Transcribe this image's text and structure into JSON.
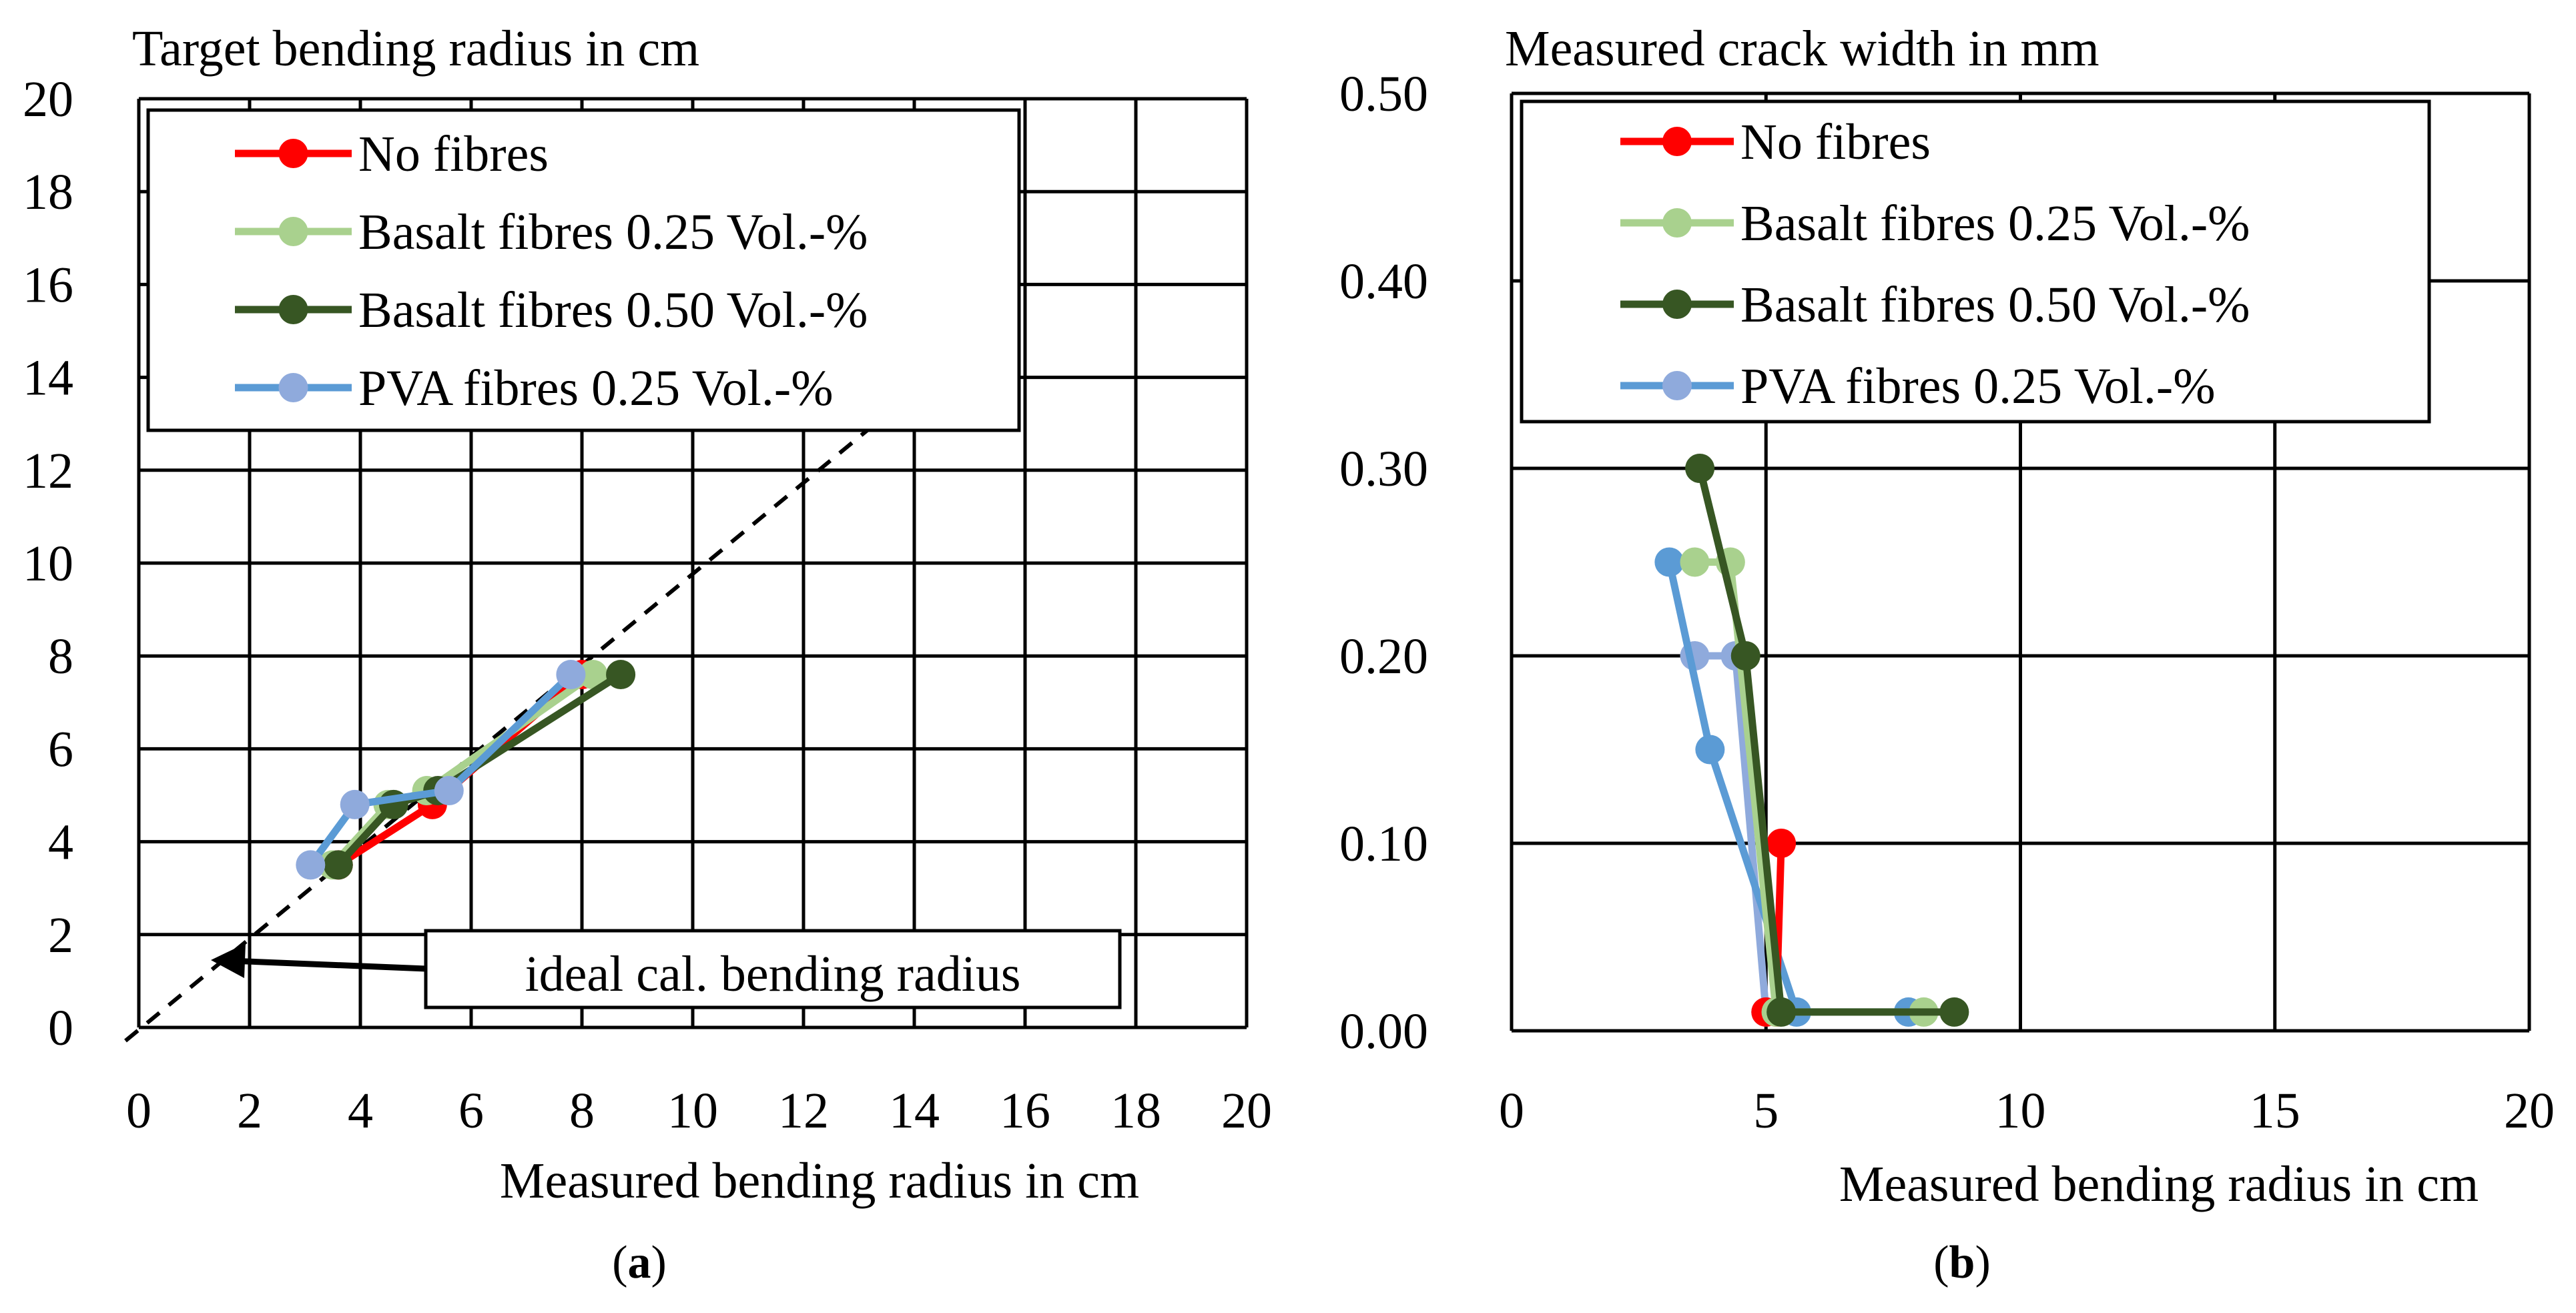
{
  "colors": {
    "no_fibres": "#ff0000",
    "basalt_025": "#a9d18e",
    "basalt_050": "#375623",
    "pva_line": "#5b9bd5",
    "pva_marker": "#8faadc"
  },
  "chart_data": [
    {
      "panel_label": "a",
      "type": "scatter",
      "title": "Target bending radius in cm",
      "xlabel": "Measured bending radius in cm",
      "ylabel": "",
      "xlim": [
        0,
        20
      ],
      "ylim": [
        0,
        20
      ],
      "x_ticks": [
        "0",
        "2",
        "4",
        "6",
        "8",
        "10",
        "12",
        "14",
        "16",
        "18",
        "20"
      ],
      "y_ticks": [
        "0",
        "2",
        "4",
        "6",
        "8",
        "10",
        "12",
        "14",
        "16",
        "18",
        "20"
      ],
      "grid": true,
      "legend_position": "top-left",
      "annotation": "ideal cal. bending radius",
      "reference_line": {
        "points": [
          [
            0,
            0
          ],
          [
            13.6,
            13.3
          ]
        ]
      },
      "series": [
        {
          "name": "No fibres",
          "color_key": "no_fibres",
          "x": [
            3.6,
            5.3,
            8.0
          ],
          "y": [
            3.5,
            4.8,
            7.6
          ]
        },
        {
          "name": "Basalt fibres 0.25 Vol.-%",
          "color_key": "basalt_025",
          "x": [
            3.5,
            4.5,
            5.2,
            8.2
          ],
          "y": [
            3.5,
            4.8,
            5.1,
            7.6
          ]
        },
        {
          "name": "Basalt fibres 0.50 Vol.-%",
          "color_key": "basalt_050",
          "x": [
            3.6,
            4.6,
            5.4,
            8.7
          ],
          "y": [
            3.5,
            4.8,
            5.1,
            7.6
          ]
        },
        {
          "name": "PVA fibres 0.25 Vol.-%",
          "color_key": "pva_line",
          "marker_key": "pva_marker",
          "x": [
            3.1,
            3.9,
            5.6,
            7.8
          ],
          "y": [
            3.5,
            4.8,
            5.1,
            7.6
          ]
        }
      ]
    },
    {
      "panel_label": "b",
      "type": "scatter",
      "title": "Measured crack width in mm",
      "xlabel": "Measured bending radius in cm",
      "ylabel": "",
      "xlim": [
        0,
        20
      ],
      "ylim": [
        0,
        0.5
      ],
      "x_ticks": [
        "0",
        "5",
        "10",
        "15",
        "20"
      ],
      "y_ticks": [
        "0.00",
        "0.10",
        "0.20",
        "0.30",
        "0.40",
        "0.50"
      ],
      "grid": true,
      "legend_position": "top",
      "series": [
        {
          "name": "No fibres",
          "color_key": "no_fibres",
          "x": [
            5.3,
            5.2,
            5.0
          ],
          "y": [
            0.1,
            0.01,
            0.01
          ]
        },
        {
          "name": "Basalt fibres 0.25 Vol.-%",
          "color_key": "basalt_025",
          "x": [
            3.6,
            4.3,
            5.2,
            8.1
          ],
          "y": [
            0.25,
            0.25,
            0.01,
            0.01
          ]
        },
        {
          "name": "Basalt fibres 0.50 Vol.-%",
          "color_key": "basalt_050",
          "x": [
            3.7,
            4.6,
            5.3,
            8.7
          ],
          "y": [
            0.3,
            0.2,
            0.01,
            0.01
          ]
        },
        {
          "name": "PVA fibres 0.25 Vol.-%",
          "color_key": "pva_marker",
          "x": [
            3.6,
            4.4,
            5.0
          ],
          "y": [
            0.2,
            0.2,
            0.01
          ],
          "layer": "under"
        },
        {
          "name": "PVA fibres 0.25 Vol.-%",
          "color_key": "pva_line",
          "x": [
            3.1,
            3.9,
            5.6,
            7.8
          ],
          "y": [
            0.25,
            0.15,
            0.01,
            0.01
          ],
          "layer": "under"
        }
      ],
      "legend_series": [
        0,
        1,
        2,
        3
      ]
    }
  ]
}
